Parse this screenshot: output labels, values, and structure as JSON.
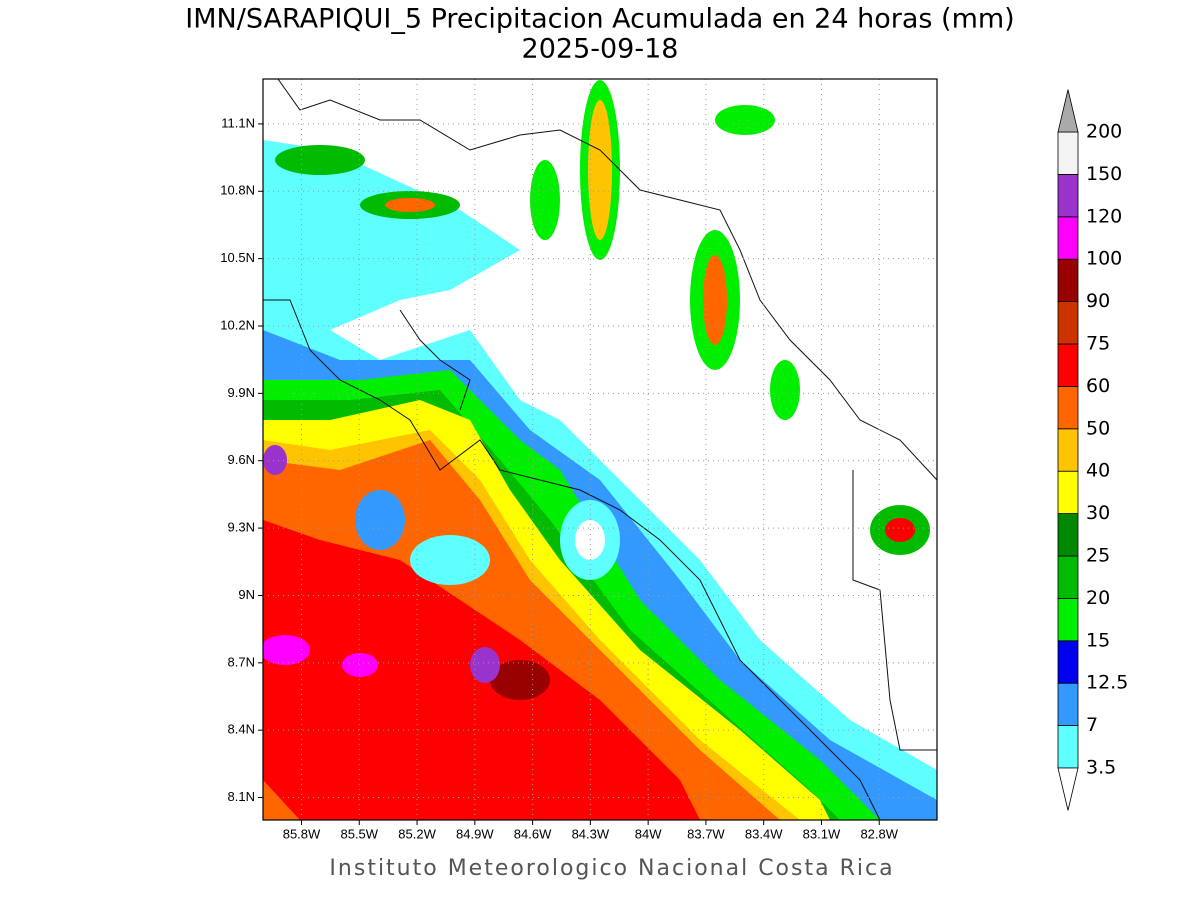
{
  "map": {
    "title": "IMN/SARAPIQUI_5 Precipitacion Acumulada en 24 horas (mm)",
    "subtitle": "2025-09-18",
    "footer": "Instituto Meteorologico Nacional Costa Rica",
    "xlim": [
      -86.0,
      -82.5
    ],
    "ylim": [
      8.0,
      11.3
    ],
    "xticks": [
      {
        "value": -85.8,
        "label": "85.8W"
      },
      {
        "value": -85.5,
        "label": "85.5W"
      },
      {
        "value": -85.2,
        "label": "85.2W"
      },
      {
        "value": -84.9,
        "label": "84.9W"
      },
      {
        "value": -84.6,
        "label": "84.6W"
      },
      {
        "value": -84.3,
        "label": "84.3W"
      },
      {
        "value": -84.0,
        "label": "84W"
      },
      {
        "value": -83.7,
        "label": "83.7W"
      },
      {
        "value": -83.4,
        "label": "83.4W"
      },
      {
        "value": -83.1,
        "label": "83.1W"
      },
      {
        "value": -82.8,
        "label": "82.8W"
      }
    ],
    "yticks": [
      {
        "value": 11.1,
        "label": "11.1N"
      },
      {
        "value": 10.8,
        "label": "10.8N"
      },
      {
        "value": 10.5,
        "label": "10.5N"
      },
      {
        "value": 10.2,
        "label": "10.2N"
      },
      {
        "value": 9.9,
        "label": "9.9N"
      },
      {
        "value": 9.6,
        "label": "9.6N"
      },
      {
        "value": 9.3,
        "label": "9.3N"
      },
      {
        "value": 9.0,
        "label": "9N"
      },
      {
        "value": 8.7,
        "label": "8.7N"
      },
      {
        "value": 8.4,
        "label": "8.4N"
      },
      {
        "value": 8.1,
        "label": "8.1N"
      }
    ],
    "grid": true,
    "colorbar": {
      "levels": [
        3.5,
        7,
        12.5,
        15,
        20,
        25,
        30,
        40,
        50,
        60,
        75,
        90,
        100,
        120,
        150,
        200
      ],
      "colors": [
        "#5fffff",
        "#3399ff",
        "#0000ee",
        "#00ee00",
        "#00bb00",
        "#008800",
        "#ffff00",
        "#ffc400",
        "#ff6600",
        "#ff0000",
        "#cc3300",
        "#990000",
        "#ff00ff",
        "#9933cc",
        "#f4f4f4"
      ],
      "under_color": "#ffffff",
      "over_color": "#aaaaaa"
    }
  }
}
